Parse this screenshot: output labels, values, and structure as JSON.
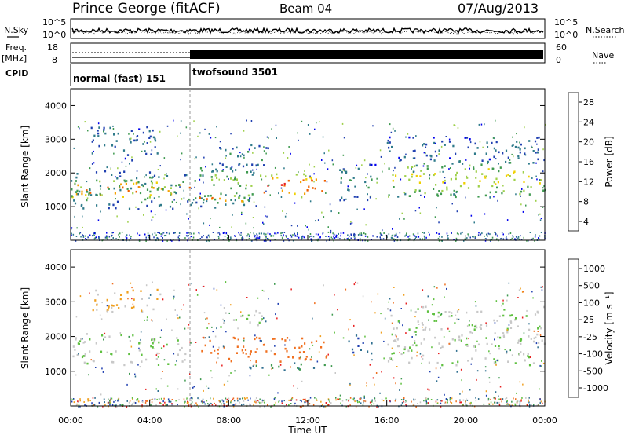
{
  "header": {
    "station": "Prince George (fitACF)",
    "beam": "Beam 04",
    "date": "07/Aug/2013"
  },
  "top_panels": {
    "nsky_label": "N.Sky",
    "nsky_ticks": [
      "10^5",
      "10^0"
    ],
    "nsearch_label": "N.Search",
    "nsearch_ticks": [
      "10^5",
      "10^0"
    ],
    "freq_label": "Freq.",
    "freq_unit": "[MHz]",
    "freq_ticks": [
      "18",
      "8"
    ],
    "nave_label": "Nave",
    "nave_ticks": [
      "60",
      "0"
    ],
    "cpid_label": "CPID",
    "cpid_modes": [
      {
        "name": "normal (fast) 151",
        "start": 0,
        "end": 6
      },
      {
        "name": "twofsound 3501",
        "start": 6,
        "end": 24
      }
    ]
  },
  "chart_data": [
    {
      "type": "heatmap",
      "panel": "power",
      "xlabel": "",
      "ylabel": "Slant Range [km]",
      "xlim": [
        0,
        24
      ],
      "ylim": [
        0,
        4500
      ],
      "yticks": [
        "1000",
        "2000",
        "3000",
        "4000"
      ],
      "colorbar": {
        "label": "Power [dB]",
        "ticks": [
          "28",
          "24",
          "20",
          "16",
          "12",
          "8",
          "4"
        ],
        "colors": [
          "#0000ee",
          "#1f3fb0",
          "#2e7a8a",
          "#3f9a50",
          "#9ed04a",
          "#f0d000",
          "#f5a000",
          "#f06000",
          "#e82020",
          "#e00000"
        ]
      },
      "bands": [
        {
          "t0": 0.0,
          "t1": 6.0,
          "r0": 1250,
          "r1": 1800,
          "level": 24
        },
        {
          "t0": 0.0,
          "t1": 6.0,
          "r0": 950,
          "r1": 2100,
          "level": 10
        },
        {
          "t0": 1.0,
          "t1": 4.5,
          "r0": 2400,
          "r1": 3400,
          "level": 6
        },
        {
          "t0": 6.0,
          "t1": 9.5,
          "r0": 1000,
          "r1": 2300,
          "level": 12
        },
        {
          "t0": 6.5,
          "t1": 9.0,
          "r0": 1150,
          "r1": 1400,
          "level": 24
        },
        {
          "t0": 7.5,
          "t1": 10.0,
          "r0": 2200,
          "r1": 2900,
          "level": 8
        },
        {
          "t0": 9.5,
          "t1": 13.0,
          "r0": 1300,
          "r1": 2000,
          "level": 26
        },
        {
          "t0": 13.5,
          "t1": 15.5,
          "r0": 1200,
          "r1": 2300,
          "level": 8
        },
        {
          "t0": 16.0,
          "t1": 24.0,
          "r0": 1300,
          "r1": 2400,
          "level": 16
        },
        {
          "t0": 16.0,
          "t1": 24.0,
          "r0": 2400,
          "r1": 3100,
          "level": 6
        }
      ]
    },
    {
      "type": "heatmap",
      "panel": "velocity",
      "xlabel": "Time UT",
      "ylabel": "Slant Range [km]",
      "xlim": [
        0,
        24
      ],
      "ylim": [
        0,
        4500
      ],
      "xticks": [
        "00:00",
        "04:00",
        "08:00",
        "12:00",
        "16:00",
        "20:00",
        "00:00"
      ],
      "yticks": [
        "1000",
        "2000",
        "3000",
        "4000"
      ],
      "colorbar": {
        "label": "Velocity [m s⁻¹]",
        "ticks": [
          "1000",
          "500",
          "100",
          "25",
          "-25",
          "-100",
          "-500",
          "-1000"
        ],
        "colors": [
          "#1f3fb0",
          "#2f6f90",
          "#3f9a50",
          "#5fc040",
          "#c8c8c8",
          "#f0a020",
          "#f07020",
          "#e82020"
        ]
      },
      "bands": [
        {
          "t0": 0.0,
          "t1": 6.0,
          "r0": 1200,
          "r1": 2100,
          "vel": 0
        },
        {
          "t0": 1.0,
          "t1": 4.5,
          "r0": 2700,
          "r1": 3400,
          "vel": -30
        },
        {
          "t0": 6.5,
          "t1": 13.0,
          "r0": 1300,
          "r1": 2000,
          "vel": -300
        },
        {
          "t0": 9.0,
          "t1": 13.0,
          "r0": 1050,
          "r1": 1300,
          "vel": 100
        },
        {
          "t0": 7.5,
          "t1": 10.0,
          "r0": 2300,
          "r1": 2900,
          "vel": 0
        },
        {
          "t0": 14.0,
          "t1": 15.5,
          "r0": 1500,
          "r1": 2100,
          "vel": 500
        },
        {
          "t0": 16.0,
          "t1": 24.0,
          "r0": 1200,
          "r1": 2900,
          "vel": 0
        }
      ]
    }
  ]
}
